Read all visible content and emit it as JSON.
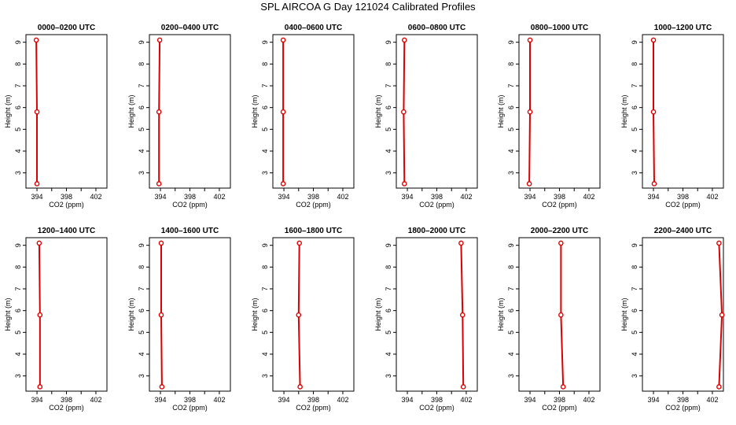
{
  "figure": {
    "title": "SPL AIRCOA G  Day 121024  Calibrated Profiles"
  },
  "chart_data": {
    "type": "line",
    "title": "SPL AIRCOA G  Day 121024  Calibrated Profiles",
    "xlabel": "CO2 (ppm)",
    "ylabel": "Height (m)",
    "xlim": [
      392.5,
      403.5
    ],
    "ylim": [
      2.3,
      9.35
    ],
    "x_ticks": [
      394,
      396,
      398,
      400,
      402
    ],
    "x_tick_labels": [
      "394",
      "398",
      "402"
    ],
    "y_ticks": [
      3,
      4,
      5,
      6,
      7,
      8,
      9
    ],
    "y_tick_labels": [
      "3",
      "4",
      "5",
      "6",
      "7",
      "8",
      "9"
    ],
    "line_color": "#dd0000",
    "marker": "open-circle",
    "heights": [
      2.5,
      5.8,
      9.1
    ],
    "panels": [
      {
        "label": "0000–0200 UTC",
        "co2": [
          394.0,
          394.0,
          393.9
        ]
      },
      {
        "label": "0200–0400 UTC",
        "co2": [
          393.8,
          393.8,
          393.9
        ]
      },
      {
        "label": "0400–0600 UTC",
        "co2": [
          393.9,
          393.9,
          393.9
        ]
      },
      {
        "label": "0600–0800 UTC",
        "co2": [
          393.6,
          393.5,
          393.6
        ]
      },
      {
        "label": "0800–1000 UTC",
        "co2": [
          393.9,
          394.0,
          394.0
        ]
      },
      {
        "label": "1000–1200 UTC",
        "co2": [
          394.1,
          394.0,
          394.0
        ]
      },
      {
        "label": "1200–1400 UTC",
        "co2": [
          394.4,
          394.4,
          394.3
        ]
      },
      {
        "label": "1400–1600 UTC",
        "co2": [
          394.2,
          394.1,
          394.1
        ]
      },
      {
        "label": "1600–1800 UTC",
        "co2": [
          396.2,
          396.0,
          396.1
        ]
      },
      {
        "label": "1800–2000 UTC",
        "co2": [
          401.6,
          401.5,
          401.3
        ]
      },
      {
        "label": "2000–2200 UTC",
        "co2": [
          398.5,
          398.2,
          398.2
        ]
      },
      {
        "label": "2200–2400 UTC",
        "co2": [
          402.9,
          403.3,
          402.9
        ]
      }
    ]
  }
}
